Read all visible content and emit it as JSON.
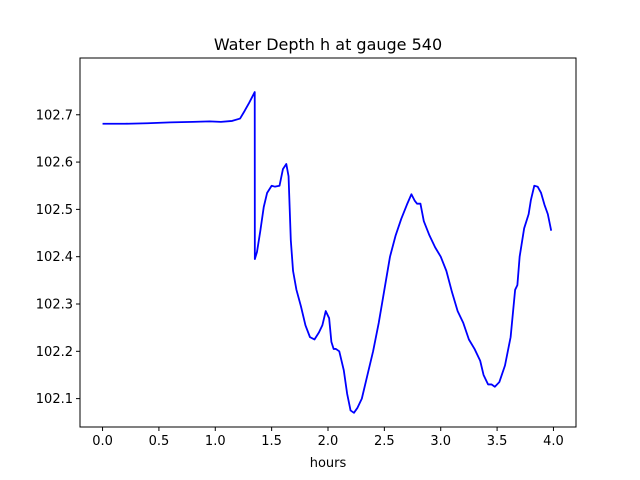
{
  "chart_data": {
    "type": "line",
    "title": "Water Depth h at gauge 540",
    "xlabel": "hours",
    "ylabel": "",
    "xlim": [
      -0.2,
      4.2
    ],
    "ylim": [
      102.04,
      102.82
    ],
    "xticks": [
      0.0,
      0.5,
      1.0,
      1.5,
      2.0,
      2.5,
      3.0,
      3.5,
      4.0
    ],
    "xtick_labels": [
      "0.0",
      "0.5",
      "1.0",
      "1.5",
      "2.0",
      "2.5",
      "3.0",
      "3.5",
      "4.0"
    ],
    "yticks": [
      102.1,
      102.2,
      102.3,
      102.4,
      102.5,
      102.6,
      102.7
    ],
    "ytick_labels": [
      "102.1",
      "102.2",
      "102.3",
      "102.4",
      "102.5",
      "102.6",
      "102.7"
    ],
    "grid": false,
    "series": [
      {
        "color": "#0000ff",
        "x": [
          0.0,
          0.2,
          0.4,
          0.6,
          0.8,
          0.95,
          1.05,
          1.15,
          1.22,
          1.26,
          1.3,
          1.35,
          1.351,
          1.37,
          1.4,
          1.43,
          1.46,
          1.5,
          1.53,
          1.57,
          1.6,
          1.63,
          1.65,
          1.67,
          1.69,
          1.72,
          1.76,
          1.8,
          1.84,
          1.88,
          1.92,
          1.95,
          1.98,
          2.01,
          2.03,
          2.05,
          2.07,
          2.1,
          2.14,
          2.17,
          2.2,
          2.23,
          2.26,
          2.3,
          2.35,
          2.4,
          2.45,
          2.5,
          2.55,
          2.6,
          2.65,
          2.7,
          2.74,
          2.77,
          2.79,
          2.82,
          2.85,
          2.9,
          2.95,
          3.0,
          3.05,
          3.1,
          3.15,
          3.2,
          3.25,
          3.3,
          3.35,
          3.38,
          3.42,
          3.45,
          3.48,
          3.52,
          3.57,
          3.62,
          3.66,
          3.68,
          3.7,
          3.74,
          3.78,
          3.8,
          3.83,
          3.86,
          3.89,
          3.92,
          3.95,
          3.98
        ],
        "y": [
          102.681,
          102.681,
          102.682,
          102.684,
          102.685,
          102.686,
          102.685,
          102.687,
          102.692,
          102.708,
          102.725,
          102.748,
          102.395,
          102.41,
          102.455,
          102.505,
          102.535,
          102.55,
          102.548,
          102.55,
          102.585,
          102.596,
          102.57,
          102.435,
          102.37,
          102.33,
          102.295,
          102.255,
          102.23,
          102.225,
          102.24,
          102.255,
          102.285,
          102.27,
          102.22,
          102.205,
          102.205,
          102.2,
          102.16,
          102.11,
          102.075,
          102.07,
          102.08,
          102.1,
          102.15,
          102.2,
          102.26,
          102.33,
          102.4,
          102.445,
          102.48,
          102.51,
          102.532,
          102.518,
          102.512,
          102.512,
          102.475,
          102.445,
          102.42,
          102.4,
          102.37,
          102.325,
          102.285,
          102.26,
          102.225,
          102.205,
          102.18,
          102.15,
          102.13,
          102.13,
          102.125,
          102.135,
          102.17,
          102.23,
          102.33,
          102.34,
          102.4,
          102.46,
          102.49,
          102.52,
          102.55,
          102.548,
          102.535,
          102.51,
          102.49,
          102.455
        ]
      }
    ]
  }
}
